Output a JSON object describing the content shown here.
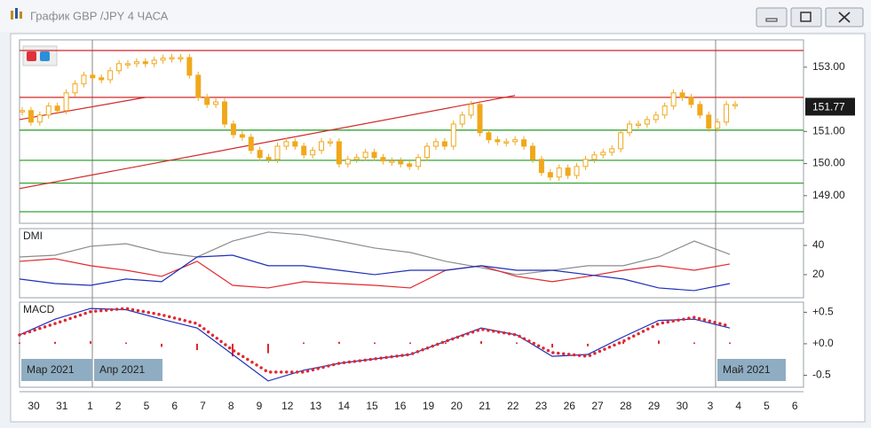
{
  "window": {
    "title": "График GBP /JPY  4 ЧАСА"
  },
  "chart_data": [
    {
      "type": "candlestick",
      "color": "#f0a81c",
      "closes": [
        151.65,
        151.29,
        151.51,
        151.79,
        151.65,
        152.2,
        152.48,
        152.75,
        152.67,
        152.61,
        152.89,
        153.11,
        153.11,
        153.17,
        153.11,
        153.22,
        153.28,
        153.3,
        153.3,
        152.75,
        152.06,
        151.84,
        151.92,
        151.23,
        150.9,
        150.82,
        150.41,
        150.19,
        150.13,
        150.54,
        150.68,
        150.54,
        150.27,
        150.41,
        150.68,
        150.68,
        149.99,
        150.13,
        150.19,
        150.35,
        150.19,
        150.08,
        150.08,
        149.99,
        149.91,
        150.19,
        150.54,
        150.68,
        150.54,
        151.23,
        151.51,
        151.84,
        150.96,
        150.74,
        150.68,
        150.68,
        150.74,
        150.54,
        150.13,
        149.72,
        149.58,
        149.86,
        149.63,
        149.91,
        150.13,
        150.27,
        150.35,
        150.46,
        150.96,
        151.23,
        151.23,
        151.37,
        151.51,
        151.79,
        152.2,
        152.06,
        151.84,
        151.51,
        151.1,
        151.29,
        151.84,
        151.84
      ],
      "ylim": [
        148.14,
        153.85
      ],
      "yticks": [
        {
          "value": 153,
          "label": "153.00"
        },
        {
          "value": 151,
          "label": "151.00"
        },
        {
          "value": 150,
          "label": "150.00"
        },
        {
          "value": 149,
          "label": "149.00"
        }
      ],
      "last_price": {
        "value": 151.77,
        "label": "151.77"
      },
      "levels": [
        {
          "value": 153.52,
          "color": "#d02828"
        },
        {
          "value": 152.06,
          "color": "#d02828"
        },
        {
          "value": 151.04,
          "color": "#1e9a1e"
        },
        {
          "value": 150.1,
          "color": "#1e9a1e"
        },
        {
          "value": 149.39,
          "color": "#1e9a1e"
        },
        {
          "value": 148.5,
          "color": "#1e9a1e"
        }
      ],
      "trendlines": [
        {
          "x": [
            0,
            14
          ],
          "y": [
            151.37,
            152.06
          ],
          "color": "#d02828"
        },
        {
          "x": [
            0,
            56
          ],
          "y": [
            149.22,
            152.12
          ],
          "color": "#d02828"
        }
      ],
      "x_labels": [
        "30",
        "31",
        "1",
        "2",
        "5",
        "6",
        "7",
        "8",
        "9",
        "12",
        "13",
        "14",
        "15",
        "16",
        "19",
        "20",
        "21",
        "22",
        "23",
        "26",
        "27",
        "28",
        "29",
        "30",
        "3",
        "4",
        "5",
        "6"
      ],
      "period_labels": [
        "Мар 2021",
        "Апр 2021",
        "Май 2021"
      ]
    },
    {
      "type": "line",
      "label": "DMI",
      "ylim": [
        4.2,
        51.5
      ],
      "yticks": [
        40,
        20
      ],
      "series": [
        {
          "color": "#8c8c8c",
          "values": [
            32.1,
            33.3,
            39.4,
            41.2,
            35.2,
            32.1,
            43.0,
            49.1,
            47.3,
            43.0,
            38.2,
            35.2,
            29.1,
            24.8,
            20.0,
            23.0,
            26.1,
            26.1,
            32.1,
            43.0,
            33.9
          ]
        },
        {
          "color": "#e0282e",
          "values": [
            29.1,
            30.9,
            26.1,
            23.0,
            18.8,
            29.1,
            12.7,
            10.9,
            15.2,
            13.9,
            12.7,
            10.9,
            23.0,
            26.1,
            18.8,
            15.2,
            18.8,
            23.0,
            26.1,
            23.0,
            27.3
          ]
        },
        {
          "color": "#1f2fb8",
          "values": [
            17.0,
            13.9,
            12.7,
            17.0,
            15.2,
            32.1,
            33.3,
            26.1,
            26.1,
            23.0,
            20.0,
            23.0,
            23.0,
            26.1,
            23.0,
            23.0,
            20.0,
            17.0,
            10.9,
            9.1,
            13.9
          ]
        }
      ]
    },
    {
      "type": "line",
      "label": "MACD",
      "ylim": [
        -0.69,
        0.66
      ],
      "yticks": [
        {
          "value": 0.5,
          "label": "+0.5"
        },
        {
          "value": 0,
          "label": "+0.0"
        },
        {
          "value": -0.5,
          "label": "-0.5"
        }
      ],
      "histogram": {
        "color": "#e0282e",
        "values": [
          0.02,
          0.03,
          0.04,
          0.02,
          -0.05,
          -0.1,
          -0.2,
          -0.15,
          0.02,
          0.03,
          0.02,
          0.02,
          0.02,
          0.04,
          0.02,
          -0.06,
          -0.04,
          0.03,
          0.05,
          0.02,
          0.02
        ]
      },
      "series": [
        {
          "color": "#1f2fb8",
          "style": "solid",
          "values": [
            0.14,
            0.39,
            0.56,
            0.54,
            0.39,
            0.25,
            -0.17,
            -0.59,
            -0.42,
            -0.31,
            -0.24,
            -0.17,
            0.04,
            0.25,
            0.14,
            -0.2,
            -0.17,
            0.11,
            0.37,
            0.39,
            0.25
          ]
        },
        {
          "color": "#e0282e",
          "style": "dotted",
          "values": [
            0.14,
            0.32,
            0.51,
            0.56,
            0.46,
            0.32,
            -0.1,
            -0.45,
            -0.45,
            -0.31,
            -0.24,
            -0.17,
            0.04,
            0.23,
            0.14,
            -0.14,
            -0.2,
            0.04,
            0.32,
            0.42,
            0.28
          ]
        }
      ]
    }
  ]
}
